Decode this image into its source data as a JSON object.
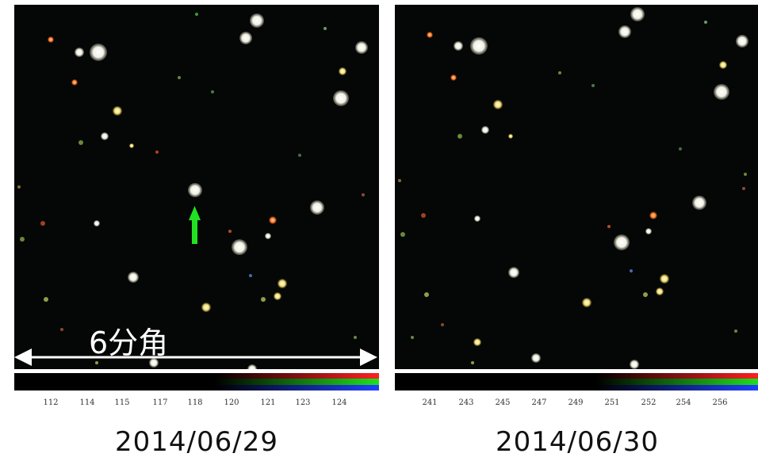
{
  "panels": [
    {
      "date": "2014/06/29",
      "ticks": [
        "112",
        "114",
        "115",
        "117",
        "118",
        "120",
        "121",
        "123",
        "124"
      ],
      "scale_label": "6分角"
    },
    {
      "date": "2014/06/30",
      "ticks": [
        "241",
        "243",
        "245",
        "247",
        "249",
        "251",
        "252",
        "254",
        "256"
      ]
    }
  ],
  "colors": {
    "sky": "#050606",
    "arrow": "#22e022",
    "star_white": "#f2f3ea",
    "star_yellow": "#f3e07a",
    "star_orange": "#ff7a28"
  }
}
